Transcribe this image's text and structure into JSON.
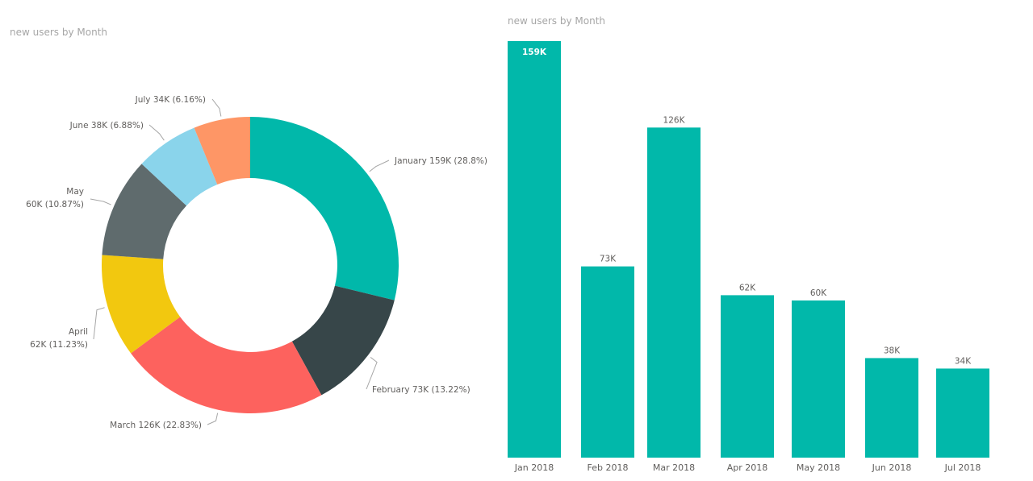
{
  "chart_data": [
    {
      "type": "pie",
      "title": "new users by Month",
      "colors": [
        "#01B8AA",
        "#374649",
        "#FD625E",
        "#F2C80F",
        "#5F6B6D",
        "#8AD4EB",
        "#FE9666"
      ],
      "slices": [
        {
          "category": "January",
          "value": 159,
          "value_label": "159K",
          "percent_label": "(28.8%)"
        },
        {
          "category": "February",
          "value": 73,
          "value_label": "73K",
          "percent_label": "(13.22%)"
        },
        {
          "category": "March",
          "value": 126,
          "value_label": "126K",
          "percent_label": "(22.83%)"
        },
        {
          "category": "April",
          "value": 62,
          "value_label": "62K",
          "percent_label": "(11.23%)"
        },
        {
          "category": "May",
          "value": 60,
          "value_label": "60K",
          "percent_label": "(10.87%)"
        },
        {
          "category": "June",
          "value": 38,
          "value_label": "38K",
          "percent_label": "(6.88%)"
        },
        {
          "category": "July",
          "value": 34,
          "value_label": "34K",
          "percent_label": "(6.16%)"
        }
      ]
    },
    {
      "type": "bar",
      "title": "new users by Month",
      "color": "#01B8AA",
      "categories": [
        "Jan 2018",
        "Feb 2018",
        "Mar 2018",
        "Apr 2018",
        "May 2018",
        "Jun 2018",
        "Jul 2018"
      ],
      "values": [
        159,
        73,
        126,
        62,
        60,
        38,
        34
      ],
      "value_labels": [
        "159K",
        "73K",
        "126K",
        "62K",
        "60K",
        "38K",
        "34K"
      ],
      "ylim": [
        0,
        159
      ],
      "grid": false
    }
  ]
}
